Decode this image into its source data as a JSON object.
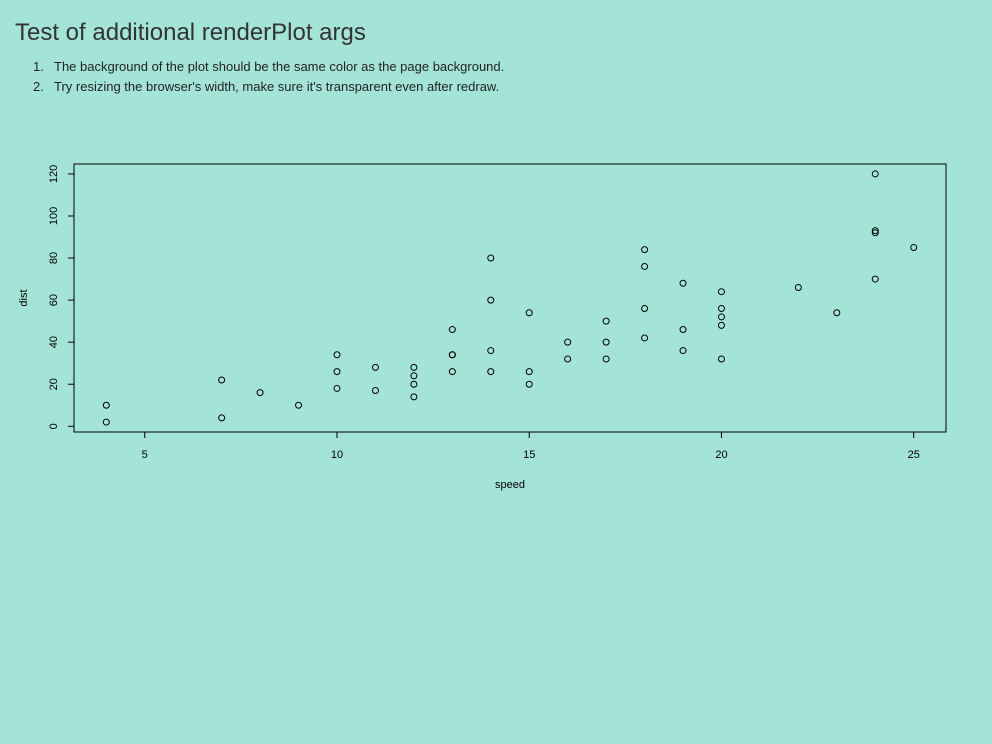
{
  "page": {
    "title": "Test of additional renderPlot args",
    "background_color": "#a3e4d7",
    "instructions": [
      {
        "number": "1.",
        "text": "The background of the plot should be the same color as the page background."
      },
      {
        "number": "2.",
        "text": "Try resizing the browser's width, make sure it's transparent even after redraw."
      }
    ]
  },
  "chart_data": {
    "type": "scatter",
    "title": "",
    "xlabel": "speed",
    "ylabel": "dist",
    "xlim": [
      3.16,
      25.84
    ],
    "ylim": [
      -2.72,
      124.72
    ],
    "x_ticks": [
      5,
      10,
      15,
      20,
      25
    ],
    "y_ticks": [
      0,
      20,
      40,
      60,
      80,
      100,
      120
    ],
    "grid": false,
    "marker": "open-circle",
    "points": [
      {
        "x": 4,
        "y": 2
      },
      {
        "x": 4,
        "y": 10
      },
      {
        "x": 7,
        "y": 4
      },
      {
        "x": 7,
        "y": 22
      },
      {
        "x": 8,
        "y": 16
      },
      {
        "x": 9,
        "y": 10
      },
      {
        "x": 10,
        "y": 18
      },
      {
        "x": 10,
        "y": 26
      },
      {
        "x": 10,
        "y": 34
      },
      {
        "x": 11,
        "y": 17
      },
      {
        "x": 11,
        "y": 28
      },
      {
        "x": 12,
        "y": 14
      },
      {
        "x": 12,
        "y": 20
      },
      {
        "x": 12,
        "y": 24
      },
      {
        "x": 12,
        "y": 28
      },
      {
        "x": 13,
        "y": 26
      },
      {
        "x": 13,
        "y": 34
      },
      {
        "x": 13,
        "y": 34
      },
      {
        "x": 13,
        "y": 46
      },
      {
        "x": 14,
        "y": 26
      },
      {
        "x": 14,
        "y": 36
      },
      {
        "x": 14,
        "y": 60
      },
      {
        "x": 14,
        "y": 80
      },
      {
        "x": 15,
        "y": 20
      },
      {
        "x": 15,
        "y": 26
      },
      {
        "x": 15,
        "y": 54
      },
      {
        "x": 16,
        "y": 32
      },
      {
        "x": 16,
        "y": 40
      },
      {
        "x": 17,
        "y": 32
      },
      {
        "x": 17,
        "y": 40
      },
      {
        "x": 17,
        "y": 50
      },
      {
        "x": 18,
        "y": 42
      },
      {
        "x": 18,
        "y": 56
      },
      {
        "x": 18,
        "y": 76
      },
      {
        "x": 18,
        "y": 84
      },
      {
        "x": 19,
        "y": 36
      },
      {
        "x": 19,
        "y": 46
      },
      {
        "x": 19,
        "y": 68
      },
      {
        "x": 20,
        "y": 32
      },
      {
        "x": 20,
        "y": 48
      },
      {
        "x": 20,
        "y": 52
      },
      {
        "x": 20,
        "y": 56
      },
      {
        "x": 20,
        "y": 64
      },
      {
        "x": 22,
        "y": 66
      },
      {
        "x": 23,
        "y": 54
      },
      {
        "x": 24,
        "y": 70
      },
      {
        "x": 24,
        "y": 92
      },
      {
        "x": 24,
        "y": 93
      },
      {
        "x": 24,
        "y": 120
      },
      {
        "x": 25,
        "y": 85
      }
    ]
  }
}
